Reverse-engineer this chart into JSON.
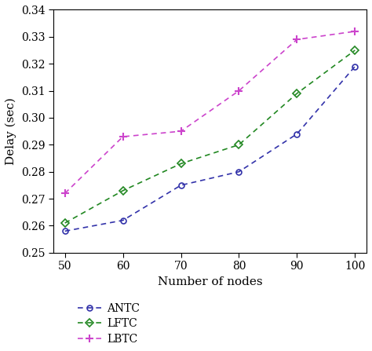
{
  "x": [
    50,
    60,
    70,
    80,
    90,
    100
  ],
  "ANTC": [
    0.258,
    0.262,
    0.275,
    0.28,
    0.294,
    0.319
  ],
  "LFTC": [
    0.261,
    0.273,
    0.283,
    0.29,
    0.309,
    0.325
  ],
  "LBTC": [
    0.272,
    0.293,
    0.295,
    0.31,
    0.329,
    0.332
  ],
  "ANTC_color": "#3333aa",
  "LFTC_color": "#228822",
  "LBTC_color": "#cc44cc",
  "xlabel": "Number of nodes",
  "ylabel": "Delay (sec)",
  "ylim": [
    0.25,
    0.34
  ],
  "xlim": [
    48,
    102
  ],
  "xticks": [
    50,
    60,
    70,
    80,
    90,
    100
  ],
  "yticks": [
    0.25,
    0.26,
    0.27,
    0.28,
    0.29,
    0.3,
    0.31,
    0.32,
    0.33,
    0.34
  ],
  "legend_labels": [
    "ANTC",
    "LFTC",
    "LBTC"
  ]
}
